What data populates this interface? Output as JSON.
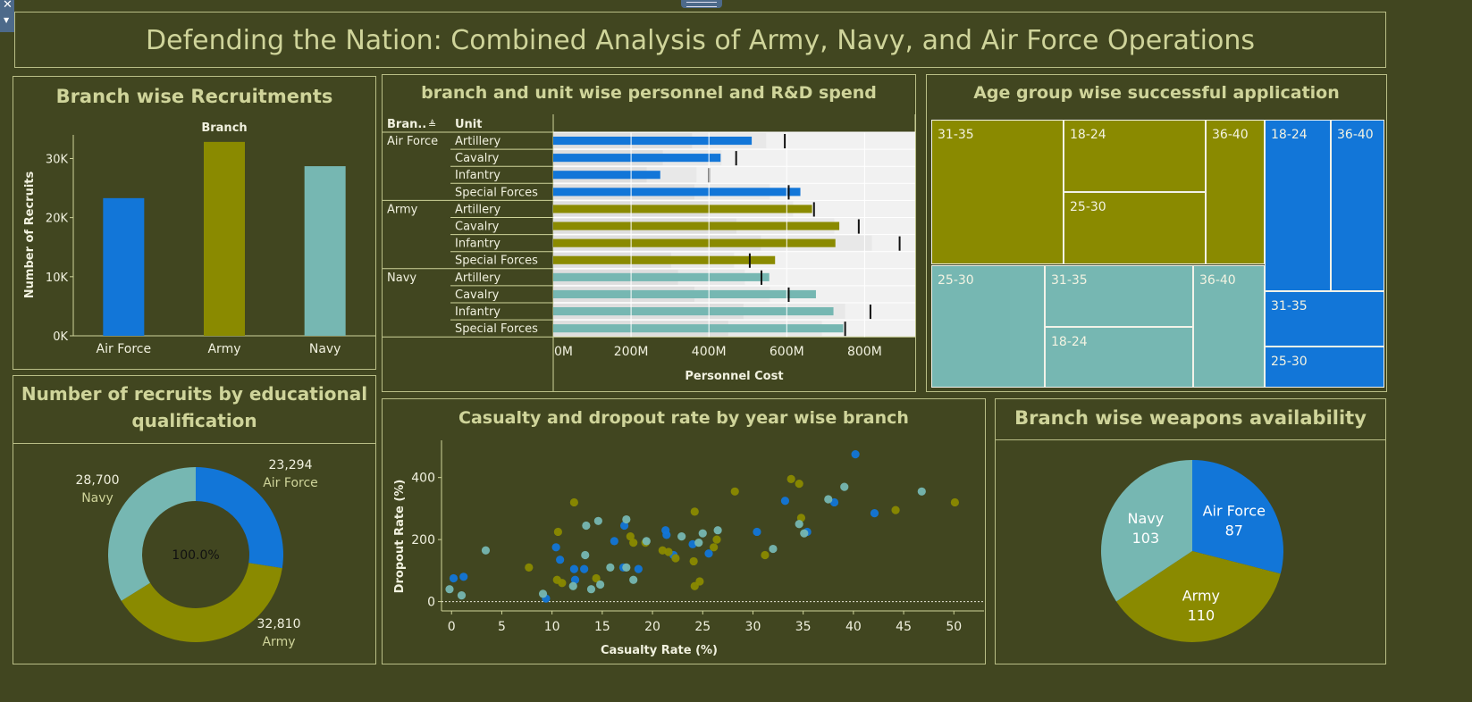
{
  "title": "Defending the Nation: Combined Analysis of Army, Navy, and Air Force Operations",
  "colors": {
    "air_force": "#1276d8",
    "army": "#8a8a00",
    "navy": "#76b7b2",
    "background": "#414620",
    "text": "#cfd49a"
  },
  "recruitment": {
    "title": "Branch wise Recruitments",
    "chart_data": {
      "type": "bar",
      "title": "Branch",
      "ylabel": "Number of Recruits",
      "xlabel": "",
      "categories": [
        "Air Force",
        "Army",
        "Navy"
      ],
      "values": [
        23294,
        32810,
        28700
      ],
      "ylim": [
        0,
        34000
      ],
      "yticks": [
        "0K",
        "10K",
        "20K",
        "30K"
      ],
      "ytick_values": [
        0,
        10000,
        20000,
        30000
      ],
      "grid": false
    }
  },
  "personnel": {
    "title": "branch and unit wise personnel and R&D spend",
    "col_branch": "Bran..",
    "col_unit": "Unit",
    "chart_data": {
      "type": "bar",
      "orientation": "horizontal",
      "title": "branch and unit wise personnel and R&D spend",
      "xlabel": "Personnel Cost",
      "xlim": [
        0,
        930000000
      ],
      "xticks": [
        "0M",
        "200M",
        "400M",
        "600M",
        "800M"
      ],
      "xtick_values": [
        0,
        200000000,
        400000000,
        600000000,
        800000000
      ],
      "rows": [
        {
          "branch": "Air Force",
          "unit": "Artillery",
          "value": 510000000,
          "ref": 595000000
        },
        {
          "branch": "",
          "unit": "Cavalry",
          "value": 430000000,
          "ref": 470000000
        },
        {
          "branch": "",
          "unit": "Infantry",
          "value": 275000000,
          "ref": 400000000
        },
        {
          "branch": "",
          "unit": "Special Forces",
          "value": 635000000,
          "ref": 605000000
        },
        {
          "branch": "Army",
          "unit": "Artillery",
          "value": 665000000,
          "ref": 670000000
        },
        {
          "branch": "",
          "unit": "Cavalry",
          "value": 735000000,
          "ref": 785000000
        },
        {
          "branch": "",
          "unit": "Infantry",
          "value": 725000000,
          "ref": 890000000
        },
        {
          "branch": "",
          "unit": "Special Forces",
          "value": 570000000,
          "ref": 505000000
        },
        {
          "branch": "Navy",
          "unit": "Artillery",
          "value": 555000000,
          "ref": 535000000
        },
        {
          "branch": "",
          "unit": "Cavalry",
          "value": 675000000,
          "ref": 605000000
        },
        {
          "branch": "",
          "unit": "Infantry",
          "value": 720000000,
          "ref": 815000000
        },
        {
          "branch": "",
          "unit": "Special Forces",
          "value": 745000000,
          "ref": 750000000
        }
      ],
      "row_branch_keys": [
        "air_force",
        "air_force",
        "air_force",
        "air_force",
        "army",
        "army",
        "army",
        "army",
        "navy",
        "navy",
        "navy",
        "navy"
      ]
    }
  },
  "age_group": {
    "title": "Age group wise successful application",
    "chart_data": {
      "type": "treemap",
      "groups": [
        {
          "branch": "army",
          "cells": [
            {
              "label": "31-35",
              "value": 32
            },
            {
              "label": "18-24",
              "value": 25
            },
            {
              "label": "25-30",
              "value": 18
            },
            {
              "label": "36-40",
              "value": 14
            }
          ]
        },
        {
          "branch": "navy",
          "cells": [
            {
              "label": "25-30",
              "value": 27
            },
            {
              "label": "31-35",
              "value": 18
            },
            {
              "label": "18-24",
              "value": 16
            },
            {
              "label": "36-40",
              "value": 16
            }
          ]
        },
        {
          "branch": "air_force",
          "cells": [
            {
              "label": "18-24",
              "value": 22
            },
            {
              "label": "36-40",
              "value": 18
            },
            {
              "label": "31-35",
              "value": 12
            },
            {
              "label": "25-30",
              "value": 10
            }
          ]
        }
      ]
    }
  },
  "education": {
    "title_line1": "Number of recruits by educational",
    "title_line2": "qualification",
    "center_label": "100.0%",
    "chart_data": {
      "type": "pie",
      "donut": true,
      "slices": [
        {
          "label": "Air Force",
          "value": 23294,
          "value_text": "23,294",
          "key": "air_force"
        },
        {
          "label": "Army",
          "value": 32810,
          "value_text": "32,810",
          "key": "army"
        },
        {
          "label": "Navy",
          "value": 28700,
          "value_text": "28,700",
          "key": "navy"
        }
      ]
    }
  },
  "casualty": {
    "title": "Casualty and dropout rate by year wise branch",
    "chart_data": {
      "type": "scatter",
      "xlabel": "Casualty Rate (%)",
      "ylabel": "Dropout Rate (%)",
      "xlim": [
        -1,
        53
      ],
      "ylim": [
        -30,
        520
      ],
      "xticks": [
        0,
        5,
        10,
        15,
        20,
        25,
        30,
        35,
        40,
        45,
        50
      ],
      "yticks": [
        0,
        200,
        400
      ],
      "series": [
        {
          "key": "air_force",
          "points": [
            [
              0.2,
              75
            ],
            [
              1.2,
              80
            ],
            [
              9.4,
              10
            ],
            [
              10.4,
              175
            ],
            [
              10.8,
              135
            ],
            [
              12.2,
              105
            ],
            [
              13.2,
              105
            ],
            [
              12.3,
              70
            ],
            [
              16.2,
              195
            ],
            [
              17.2,
              245
            ],
            [
              17.1,
              110
            ],
            [
              18.6,
              105
            ],
            [
              21.3,
              230
            ],
            [
              21.4,
              215
            ],
            [
              22.1,
              150
            ],
            [
              24.0,
              185
            ],
            [
              25.6,
              155
            ],
            [
              30.4,
              225
            ],
            [
              33.2,
              325
            ],
            [
              35.4,
              225
            ],
            [
              38.1,
              320
            ],
            [
              40.2,
              475
            ],
            [
              42.1,
              285
            ]
          ]
        },
        {
          "key": "army",
          "points": [
            [
              7.7,
              110
            ],
            [
              10.6,
              225
            ],
            [
              10.5,
              70
            ],
            [
              11.0,
              60
            ],
            [
              12.2,
              320
            ],
            [
              14.4,
              75
            ],
            [
              17.8,
              210
            ],
            [
              18.1,
              190
            ],
            [
              19.3,
              190
            ],
            [
              21.0,
              165
            ],
            [
              21.6,
              160
            ],
            [
              22.3,
              140
            ],
            [
              24.2,
              50
            ],
            [
              24.7,
              65
            ],
            [
              24.2,
              290
            ],
            [
              24.1,
              130
            ],
            [
              26.1,
              175
            ],
            [
              26.4,
              200
            ],
            [
              28.2,
              355
            ],
            [
              33.8,
              395
            ],
            [
              31.2,
              150
            ],
            [
              34.6,
              380
            ],
            [
              34.8,
              270
            ],
            [
              44.2,
              295
            ],
            [
              50.1,
              320
            ]
          ]
        },
        {
          "key": "navy",
          "points": [
            [
              -0.2,
              40
            ],
            [
              1.0,
              20
            ],
            [
              3.4,
              165
            ],
            [
              9.1,
              25
            ],
            [
              12.1,
              50
            ],
            [
              13.4,
              245
            ],
            [
              13.3,
              150
            ],
            [
              14.6,
              260
            ],
            [
              13.9,
              40
            ],
            [
              14.8,
              55
            ],
            [
              15.8,
              110
            ],
            [
              17.4,
              110
            ],
            [
              17.4,
              265
            ],
            [
              18.1,
              70
            ],
            [
              19.4,
              195
            ],
            [
              22.9,
              210
            ],
            [
              24.6,
              190
            ],
            [
              25.0,
              220
            ],
            [
              26.5,
              230
            ],
            [
              32.0,
              170
            ],
            [
              34.6,
              250
            ],
            [
              35.1,
              220
            ],
            [
              37.5,
              330
            ],
            [
              39.1,
              370
            ],
            [
              46.8,
              355
            ]
          ]
        }
      ]
    }
  },
  "weapons": {
    "title": "Branch wise weapons availability",
    "chart_data": {
      "type": "pie",
      "slices": [
        {
          "label": "Air Force",
          "value": 87,
          "key": "air_force"
        },
        {
          "label": "Army",
          "value": 110,
          "key": "army"
        },
        {
          "label": "Navy",
          "value": 103,
          "key": "navy"
        }
      ]
    }
  }
}
